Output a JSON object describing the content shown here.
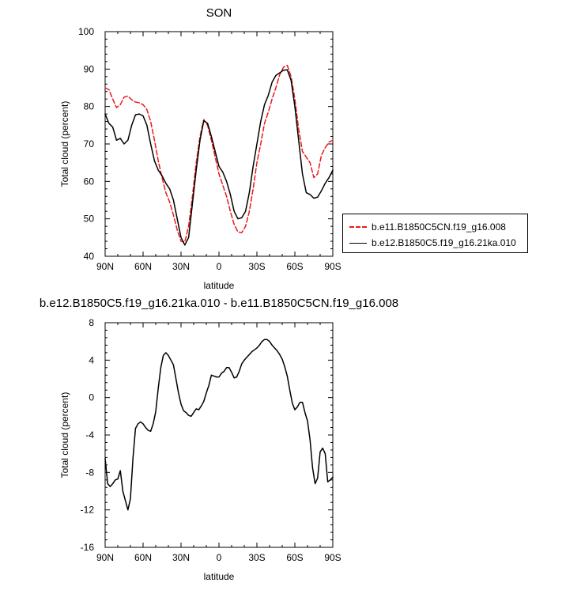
{
  "chart_data": [
    {
      "type": "line",
      "title": "SON",
      "xlabel": "latitude",
      "ylabel": "Total cloud (percent)",
      "xlim": [
        -90,
        90
      ],
      "ylim": [
        40,
        100
      ],
      "xticks": [
        -90,
        -60,
        -30,
        0,
        30,
        60,
        90
      ],
      "xtick_labels": [
        "90N",
        "60N",
        "30N",
        "0",
        "30S",
        "60S",
        "90S"
      ],
      "yticks": [
        40,
        50,
        60,
        70,
        80,
        90,
        100
      ],
      "ytick_labels": [
        "40",
        "50",
        "60",
        "70",
        "80",
        "90",
        "100"
      ],
      "legend": "right",
      "grid": false,
      "series": [
        {
          "name": "b.e11.B1850C5CN.f19_g16.008",
          "color": "#e8191b",
          "dash": "dashed",
          "x": [
            -90,
            -87,
            -84,
            -81,
            -78,
            -75,
            -72,
            -69,
            -66,
            -63,
            -60,
            -57,
            -54,
            -51,
            -48,
            -45,
            -42,
            -39,
            -36,
            -33,
            -30,
            -27,
            -24,
            -21,
            -18,
            -15,
            -12,
            -9,
            -6,
            -3,
            0,
            3,
            6,
            9,
            12,
            15,
            18,
            21,
            24,
            27,
            30,
            33,
            36,
            39,
            42,
            45,
            48,
            51,
            54,
            57,
            60,
            63,
            66,
            69,
            72,
            75,
            78,
            81,
            84,
            87,
            90
          ],
          "y": [
            85,
            84.5,
            82,
            79.7,
            80.5,
            82.5,
            82.8,
            81.8,
            81.2,
            81,
            80.5,
            79.2,
            76,
            71,
            65.5,
            61,
            57,
            54.5,
            51,
            47,
            44,
            43.8,
            48,
            56,
            65,
            72,
            76.5,
            75,
            71,
            66.5,
            62,
            59,
            56,
            52,
            48.5,
            46.5,
            46.3,
            48,
            52,
            58,
            65,
            70,
            75.5,
            78.5,
            82,
            85,
            88.5,
            90.5,
            91,
            88,
            82,
            74,
            68,
            66.5,
            65,
            61,
            62,
            67,
            69,
            70.5,
            71
          ]
        },
        {
          "name": "b.e12.B1850C5.f19_g16.21ka.010",
          "color": "#000000",
          "dash": "solid",
          "x": [
            -90,
            -87,
            -84,
            -81,
            -78,
            -75,
            -72,
            -69,
            -66,
            -63,
            -60,
            -57,
            -54,
            -51,
            -48,
            -45,
            -42,
            -39,
            -36,
            -33,
            -30,
            -27,
            -24,
            -21,
            -18,
            -15,
            -12,
            -9,
            -6,
            -3,
            0,
            3,
            6,
            9,
            12,
            15,
            18,
            21,
            24,
            27,
            30,
            33,
            36,
            39,
            42,
            45,
            48,
            51,
            54,
            57,
            60,
            63,
            66,
            69,
            72,
            75,
            78,
            81,
            84,
            87,
            90
          ],
          "y": [
            78,
            75.5,
            74.5,
            71,
            71.5,
            70,
            71,
            75,
            77.8,
            78,
            77.5,
            75,
            70,
            65.5,
            63,
            61.5,
            59.5,
            58,
            55,
            50,
            45,
            43,
            45,
            54,
            63,
            71,
            76.2,
            75.5,
            72,
            68,
            64,
            62.5,
            60,
            56.5,
            52,
            50,
            50.3,
            52,
            57,
            64,
            70,
            76,
            80.5,
            83,
            86.5,
            88.3,
            89,
            89.7,
            89.8,
            87,
            80,
            71,
            62,
            57,
            56.5,
            55.5,
            55.8,
            57.5,
            59.5,
            61,
            63
          ]
        }
      ]
    },
    {
      "type": "line",
      "title": "b.e12.B1850C5.f19_g16.21ka.010 - b.e11.B1850C5CN.f19_g16.008",
      "xlabel": "latitude",
      "ylabel": "Total cloud (percent)",
      "xlim": [
        -90,
        90
      ],
      "ylim": [
        -16,
        8
      ],
      "xticks": [
        -90,
        -60,
        -30,
        0,
        30,
        60,
        90
      ],
      "xtick_labels": [
        "90N",
        "60N",
        "30N",
        "0",
        "30S",
        "60S",
        "90S"
      ],
      "yticks": [
        -16,
        -12,
        -8,
        -4,
        0,
        4,
        8
      ],
      "ytick_labels": [
        "-16",
        "-12",
        "-8",
        "-4",
        "0",
        "4",
        "8"
      ],
      "grid": false,
      "series": [
        {
          "color": "#000000",
          "dash": "solid",
          "x": [
            -90,
            -88,
            -86,
            -84,
            -82,
            -80,
            -78,
            -76,
            -74,
            -72,
            -70,
            -68,
            -66,
            -64,
            -62,
            -60,
            -58,
            -56,
            -54,
            -52,
            -50,
            -48,
            -46,
            -44,
            -42,
            -40,
            -38,
            -36,
            -34,
            -32,
            -30,
            -28,
            -26,
            -24,
            -22,
            -20,
            -18,
            -16,
            -14,
            -12,
            -10,
            -8,
            -6,
            -4,
            -2,
            0,
            2,
            4,
            6,
            8,
            10,
            12,
            14,
            16,
            18,
            20,
            22,
            24,
            26,
            28,
            30,
            32,
            34,
            36,
            38,
            40,
            42,
            44,
            46,
            48,
            50,
            52,
            54,
            56,
            58,
            60,
            62,
            64,
            66,
            68,
            70,
            72,
            74,
            76,
            78,
            80,
            82,
            84,
            86,
            88,
            90
          ],
          "y": [
            -6.5,
            -9.2,
            -9.5,
            -9.2,
            -8.8,
            -8.7,
            -7.8,
            -10,
            -11,
            -12,
            -10.8,
            -6.5,
            -3.3,
            -2.8,
            -2.6,
            -2.8,
            -3.2,
            -3.5,
            -3.6,
            -2.8,
            -1.5,
            1,
            3.2,
            4.5,
            4.8,
            4.5,
            4,
            3.5,
            2,
            0.5,
            -0.7,
            -1.4,
            -1.6,
            -1.9,
            -2,
            -1.6,
            -1.2,
            -1.3,
            -0.9,
            -0.4,
            0.5,
            1.3,
            2.4,
            2.3,
            2.2,
            2.2,
            2.6,
            2.8,
            3.2,
            3.2,
            2.7,
            2.1,
            2.2,
            2.8,
            3.6,
            4,
            4.3,
            4.6,
            4.9,
            5.1,
            5.3,
            5.6,
            6,
            6.2,
            6.2,
            6,
            5.6,
            5.3,
            5,
            4.6,
            4.1,
            3.3,
            2.3,
            0.8,
            -0.6,
            -1.3,
            -1,
            -0.5,
            -0.5,
            -1.6,
            -2.5,
            -4.5,
            -7.5,
            -9.2,
            -8.6,
            -5.8,
            -5.4,
            -6,
            -9,
            -8.8,
            -8.5
          ]
        }
      ]
    }
  ]
}
